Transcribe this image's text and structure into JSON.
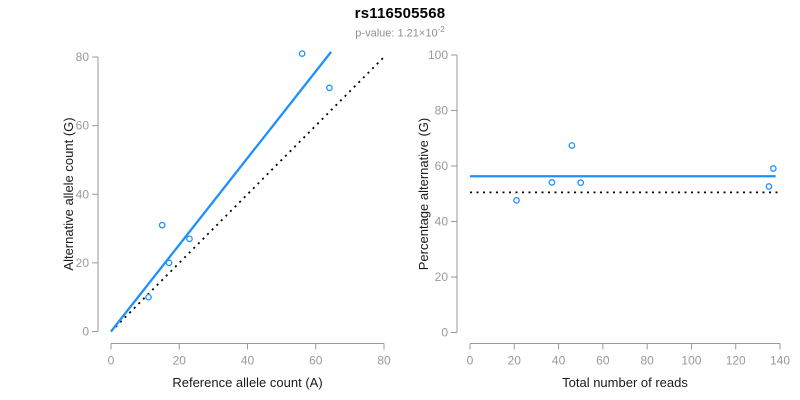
{
  "title": "rs116505568",
  "subtitle": {
    "label": "p-value: 1.21×10",
    "exponent": "-2"
  },
  "colors": {
    "accent_blue": "#1E90FF",
    "dotted_black": "#000000",
    "axis_gray": "#999999",
    "tick_label_gray": "#999999",
    "axis_title_color": "#1a1a1a",
    "title_color": "#000000",
    "subtitle_gray": "#8f8f8f",
    "background": "#ffffff"
  },
  "chart_data": [
    {
      "type": "scatter",
      "panel": "left",
      "xlabel": "Reference allele count (A)",
      "ylabel": "Alternative allele count (G)",
      "xlim": [
        0,
        80
      ],
      "ylim": [
        0,
        80
      ],
      "xticks": [
        0,
        20,
        40,
        60,
        80
      ],
      "yticks": [
        0,
        20,
        40,
        60,
        80
      ],
      "grid": false,
      "points": [
        {
          "x": 11,
          "y": 10
        },
        {
          "x": 17,
          "y": 20
        },
        {
          "x": 23,
          "y": 27
        },
        {
          "x": 15,
          "y": 31
        },
        {
          "x": 64,
          "y": 71
        },
        {
          "x": 56,
          "y": 81
        }
      ],
      "lines": [
        {
          "name": "identity-line",
          "x1": 0,
          "y1": 0,
          "x2": 80.5,
          "y2": 80.5,
          "style": "dotted",
          "color": "#000000"
        },
        {
          "name": "fit-line",
          "x1": 0,
          "y1": 0,
          "x2": 64.5,
          "y2": 81.5,
          "style": "solid",
          "color": "#1E90FF"
        }
      ]
    },
    {
      "type": "scatter",
      "panel": "right",
      "xlabel": "Total number of reads",
      "ylabel": "Percentage alternative (G)",
      "xlim": [
        0,
        140
      ],
      "ylim": [
        0,
        100
      ],
      "xticks": [
        0,
        20,
        40,
        60,
        80,
        100,
        120,
        140
      ],
      "yticks": [
        0,
        20,
        40,
        60,
        80,
        100
      ],
      "grid": false,
      "points": [
        {
          "x": 21,
          "y": 47.6
        },
        {
          "x": 37,
          "y": 54.1
        },
        {
          "x": 50,
          "y": 54.0
        },
        {
          "x": 46,
          "y": 67.4
        },
        {
          "x": 135,
          "y": 52.6
        },
        {
          "x": 137,
          "y": 59.1
        }
      ],
      "lines": [
        {
          "name": "null-percentage-line",
          "x1": 0,
          "y1": 50.5,
          "x2": 140,
          "y2": 50.5,
          "style": "dotted",
          "color": "#000000"
        },
        {
          "name": "fit-percentage-line",
          "x1": 0,
          "y1": 56.3,
          "x2": 138,
          "y2": 56.3,
          "style": "solid",
          "color": "#1E90FF"
        }
      ]
    }
  ]
}
